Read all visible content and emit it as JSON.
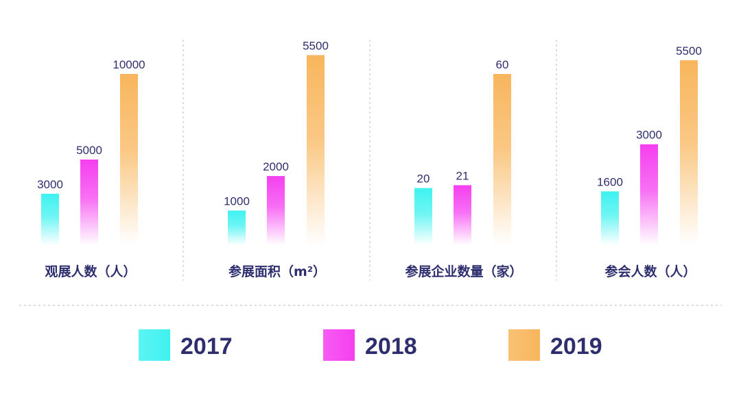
{
  "chart_data": {
    "type": "bar",
    "series": [
      {
        "name": "2017",
        "color": "#3ff2f0"
      },
      {
        "name": "2018",
        "color": "#f53ff0"
      },
      {
        "name": "2019",
        "color": "#f8b65c"
      }
    ],
    "groups": [
      {
        "label": "观展人数（人）",
        "values": [
          3000,
          5000,
          10000
        ],
        "labels": [
          "3000",
          "5000",
          "10000"
        ]
      },
      {
        "label": "参展面积（m²）",
        "values": [
          1000,
          2000,
          5500
        ],
        "labels": [
          "1000",
          "2000",
          "5500"
        ]
      },
      {
        "label": "参展企业数量（家）",
        "values": [
          20,
          21,
          60
        ],
        "labels": [
          "20",
          "21",
          "60"
        ]
      },
      {
        "label": "参会人数（人）",
        "values": [
          1600,
          3000,
          5500
        ],
        "labels": [
          "1600",
          "3000",
          "5500"
        ]
      }
    ],
    "grid": false,
    "legend_position": "bottom",
    "bar_fade": "gradient-to-transparent-bottom"
  }
}
